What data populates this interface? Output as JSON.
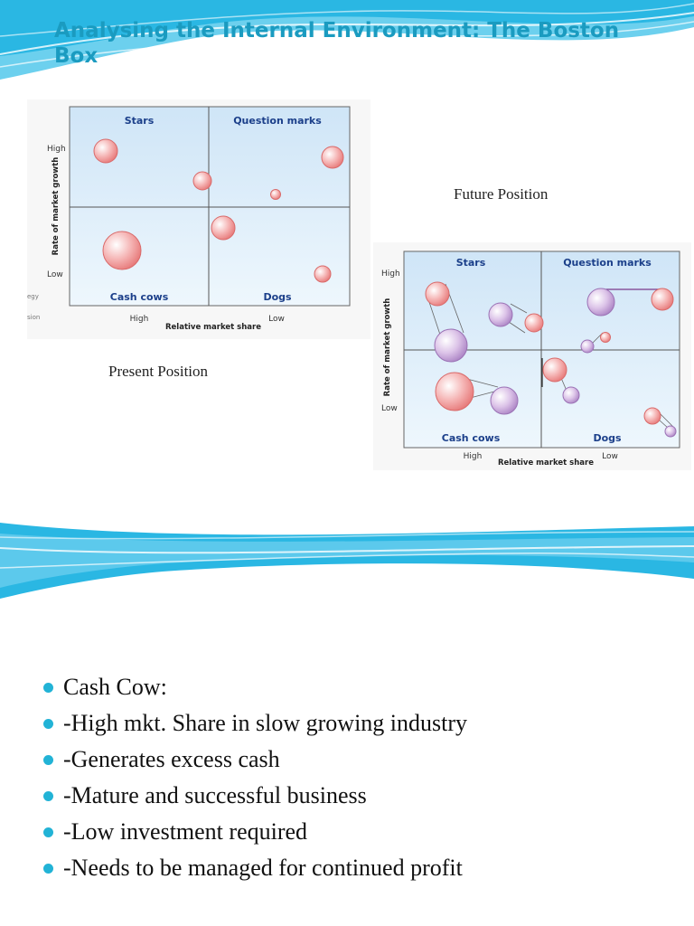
{
  "slide": {
    "title": "Analysing the Internal Environment: The Boston Box",
    "bullets": [
      "Cash Cow:",
      "-High mkt. Share in slow growing industry",
      "-Generates excess cash",
      "-Mature and successful business",
      "-Low investment required",
      "-Needs to be managed for continued profit"
    ]
  },
  "colors": {
    "title": "#1a9bc0",
    "wave": "#2ab7e3",
    "grid_bg": "#dceefb",
    "bubble_red": "#f29a9a",
    "bubble_purple": "#c7a6d8",
    "bullet": "#22b3d6"
  },
  "present": {
    "caption": "Present Position",
    "quadrants": {
      "top_left": "Stars",
      "top_right": "Question marks",
      "bottom_left": "Cash cows",
      "bottom_right": "Dogs"
    },
    "y_axis_label": "Rate of market growth",
    "y_high": "High",
    "y_low": "Low",
    "x_axis_label": "Relative market share",
    "x_high": "High",
    "x_low": "Low",
    "cropped_left_1": "egy",
    "cropped_left_2": "sion"
  },
  "future": {
    "caption": "Future Position",
    "quadrants": {
      "top_left": "Stars",
      "top_right": "Question marks",
      "bottom_left": "Cash cows",
      "bottom_right": "Dogs"
    },
    "y_axis_label": "Rate of market growth",
    "y_high": "High",
    "y_low": "Low",
    "x_axis_label": "Relative market share",
    "x_high": "High",
    "x_low": "Low"
  }
}
